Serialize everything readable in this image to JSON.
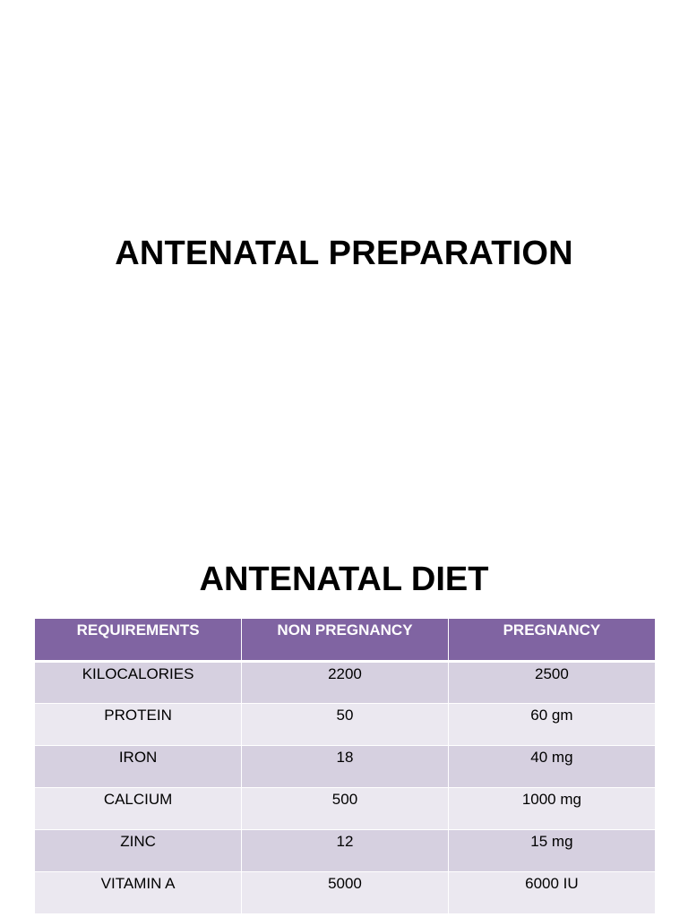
{
  "slides": [
    {
      "title": "ANTENATAL PREPARATION"
    },
    {
      "title": "ANTENATAL DIET",
      "table": {
        "headers": [
          "REQUIREMENTS",
          "NON PREGNANCY",
          "PREGNANCY"
        ],
        "rows": [
          [
            "KILOCALORIES",
            "2200",
            "2500"
          ],
          [
            "PROTEIN",
            "50",
            "60 gm"
          ],
          [
            "IRON",
            "18",
            "40 mg"
          ],
          [
            "CALCIUM",
            "500",
            "1000 mg"
          ],
          [
            "ZINC",
            "12",
            "15 mg"
          ],
          [
            "VITAMIN A",
            "5000",
            "6000 IU"
          ]
        ]
      }
    }
  ],
  "colors": {
    "header_bg": "#8064a2",
    "row_odd_bg": "#d6d0e0",
    "row_even_bg": "#ebe8f0"
  }
}
